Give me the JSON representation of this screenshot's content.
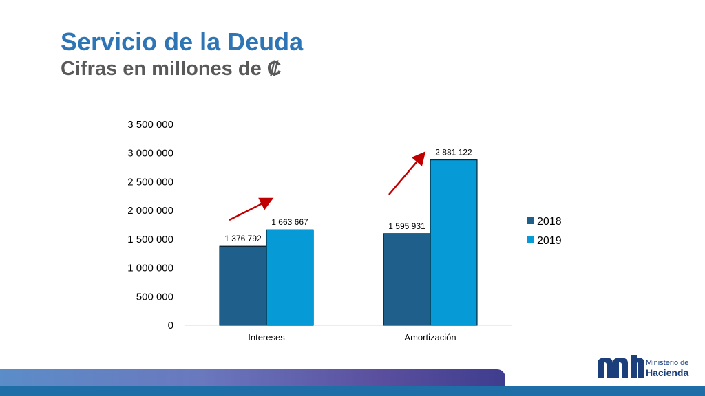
{
  "page": {
    "title": "Servicio de la Deuda",
    "subtitle": "Cifras en millones de ₡"
  },
  "logo": {
    "line1": "Ministerio de",
    "line2": "Hacienda"
  },
  "colors": {
    "title": "#2e75b6",
    "subtitle": "#595959",
    "s2018": "#1f5f8b",
    "s2019": "#069bd7",
    "arrow": "#c00000",
    "axis": "#d9d9d9"
  },
  "chart_data": {
    "type": "bar",
    "categories": [
      "Intereses",
      "Amortización"
    ],
    "series": [
      {
        "name": "2018",
        "values": [
          1376792,
          1595931
        ],
        "labels": [
          "1 376 792",
          "1 595 931"
        ],
        "color": "#1f5f8b"
      },
      {
        "name": "2019",
        "values": [
          1663667,
          2881122
        ],
        "labels": [
          "1 663 667",
          "2 881 122"
        ],
        "color": "#069bd7"
      }
    ],
    "ylim": [
      0,
      3500000
    ],
    "yticks": [
      0,
      500000,
      1000000,
      1500000,
      2000000,
      2500000,
      3000000,
      3500000
    ],
    "ytick_labels": [
      "0",
      "500 000",
      "1 000 000",
      "1 500 000",
      "2 000 000",
      "2 500 000",
      "3 000 000",
      "3 500 000"
    ],
    "legend_position": "right",
    "gridlines": false,
    "annotations": [
      "red upward arrow above Intereses bars",
      "red upward arrow above Amortización bars"
    ]
  }
}
